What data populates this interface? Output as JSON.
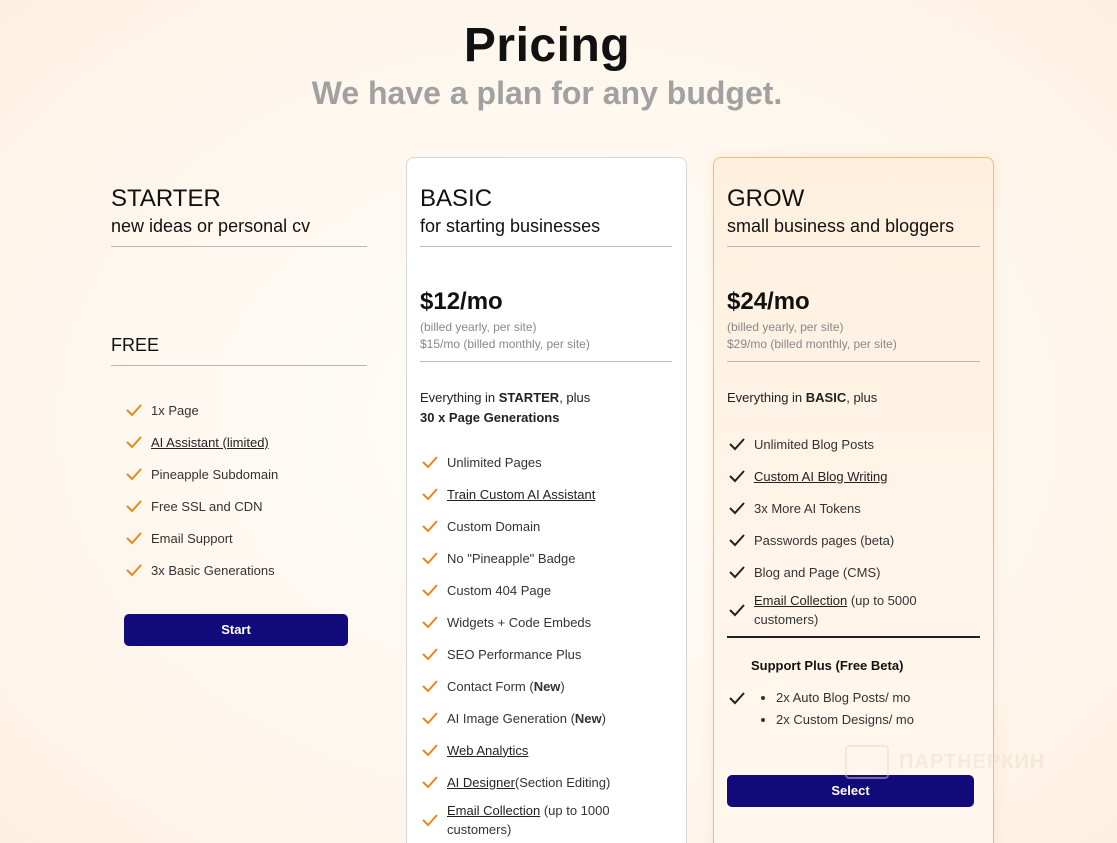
{
  "hero": {
    "title": "Pricing",
    "subtitle": "We have a plan for any budget."
  },
  "starter": {
    "name": "STARTER",
    "tagline": "new ideas or personal cv",
    "price": "FREE",
    "features": [
      "1x Page",
      "AI Assistant (limited)",
      "Pineapple Subdomain",
      "Free SSL and CDN",
      "Email Support",
      "3x Basic Generations"
    ],
    "button": "Start"
  },
  "basic": {
    "name": "BASIC",
    "tagline": "for starting businesses",
    "price": "$12/mo",
    "billed_yearly": "(billed yearly, per site)",
    "billed_monthly": "$15/mo (billed monthly, per site)",
    "intro_pre": "Everything in ",
    "intro_bold": "STARTER",
    "intro_post": ", plus",
    "intro_line2": "30 x Page Generations",
    "features": {
      "f1": "Unlimited Pages",
      "f2": "Train Custom AI Assistant",
      "f3": "Custom Domain",
      "f4": "No \"Pineapple\" Badge",
      "f5": "Custom 404 Page",
      "f6": "Widgets + Code Embeds",
      "f7": "SEO Performance Plus",
      "f8_pre": "Contact Form (",
      "f8_bold": "New",
      "f8_post": ")",
      "f9_pre": "AI Image Generation (",
      "f9_bold": "New",
      "f9_post": ")",
      "f10": "Web Analytics",
      "f11_link": "AI Designer",
      "f11_post": "(Section Editing)",
      "f12_link": "Email Collection",
      "f12_post": " (up to 1000",
      "f12_line2": "customers)"
    }
  },
  "grow": {
    "name": "GROW",
    "tagline": "small business and bloggers",
    "price": "$24/mo",
    "billed_yearly": "(billed yearly, per site)",
    "billed_monthly": "$29/mo (billed monthly, per site)",
    "intro_pre": "Everything in ",
    "intro_bold": "BASIC",
    "intro_post": ", plus",
    "features": {
      "f1": "Unlimited Blog Posts",
      "f2": "Custom AI Blog Writing",
      "f3": "3x More AI Tokens",
      "f4": "Passwords pages (beta)",
      "f5": "Blog and Page (CMS)",
      "f6_link": "Email Collection",
      "f6_post": " (up to 5000",
      "f6_line2": "customers)"
    },
    "support_title": "Support Plus (Free Beta)",
    "support_items": [
      "2x Auto Blog Posts/ mo",
      "2x Custom Designs/ mo"
    ],
    "button": "Select"
  },
  "watermark": "ПАРТНЕРКИН",
  "colors": {
    "accent": "#110a7a",
    "check_orange": "#e8891e",
    "check_dark": "#222222",
    "grow_border": "#f3b876"
  }
}
